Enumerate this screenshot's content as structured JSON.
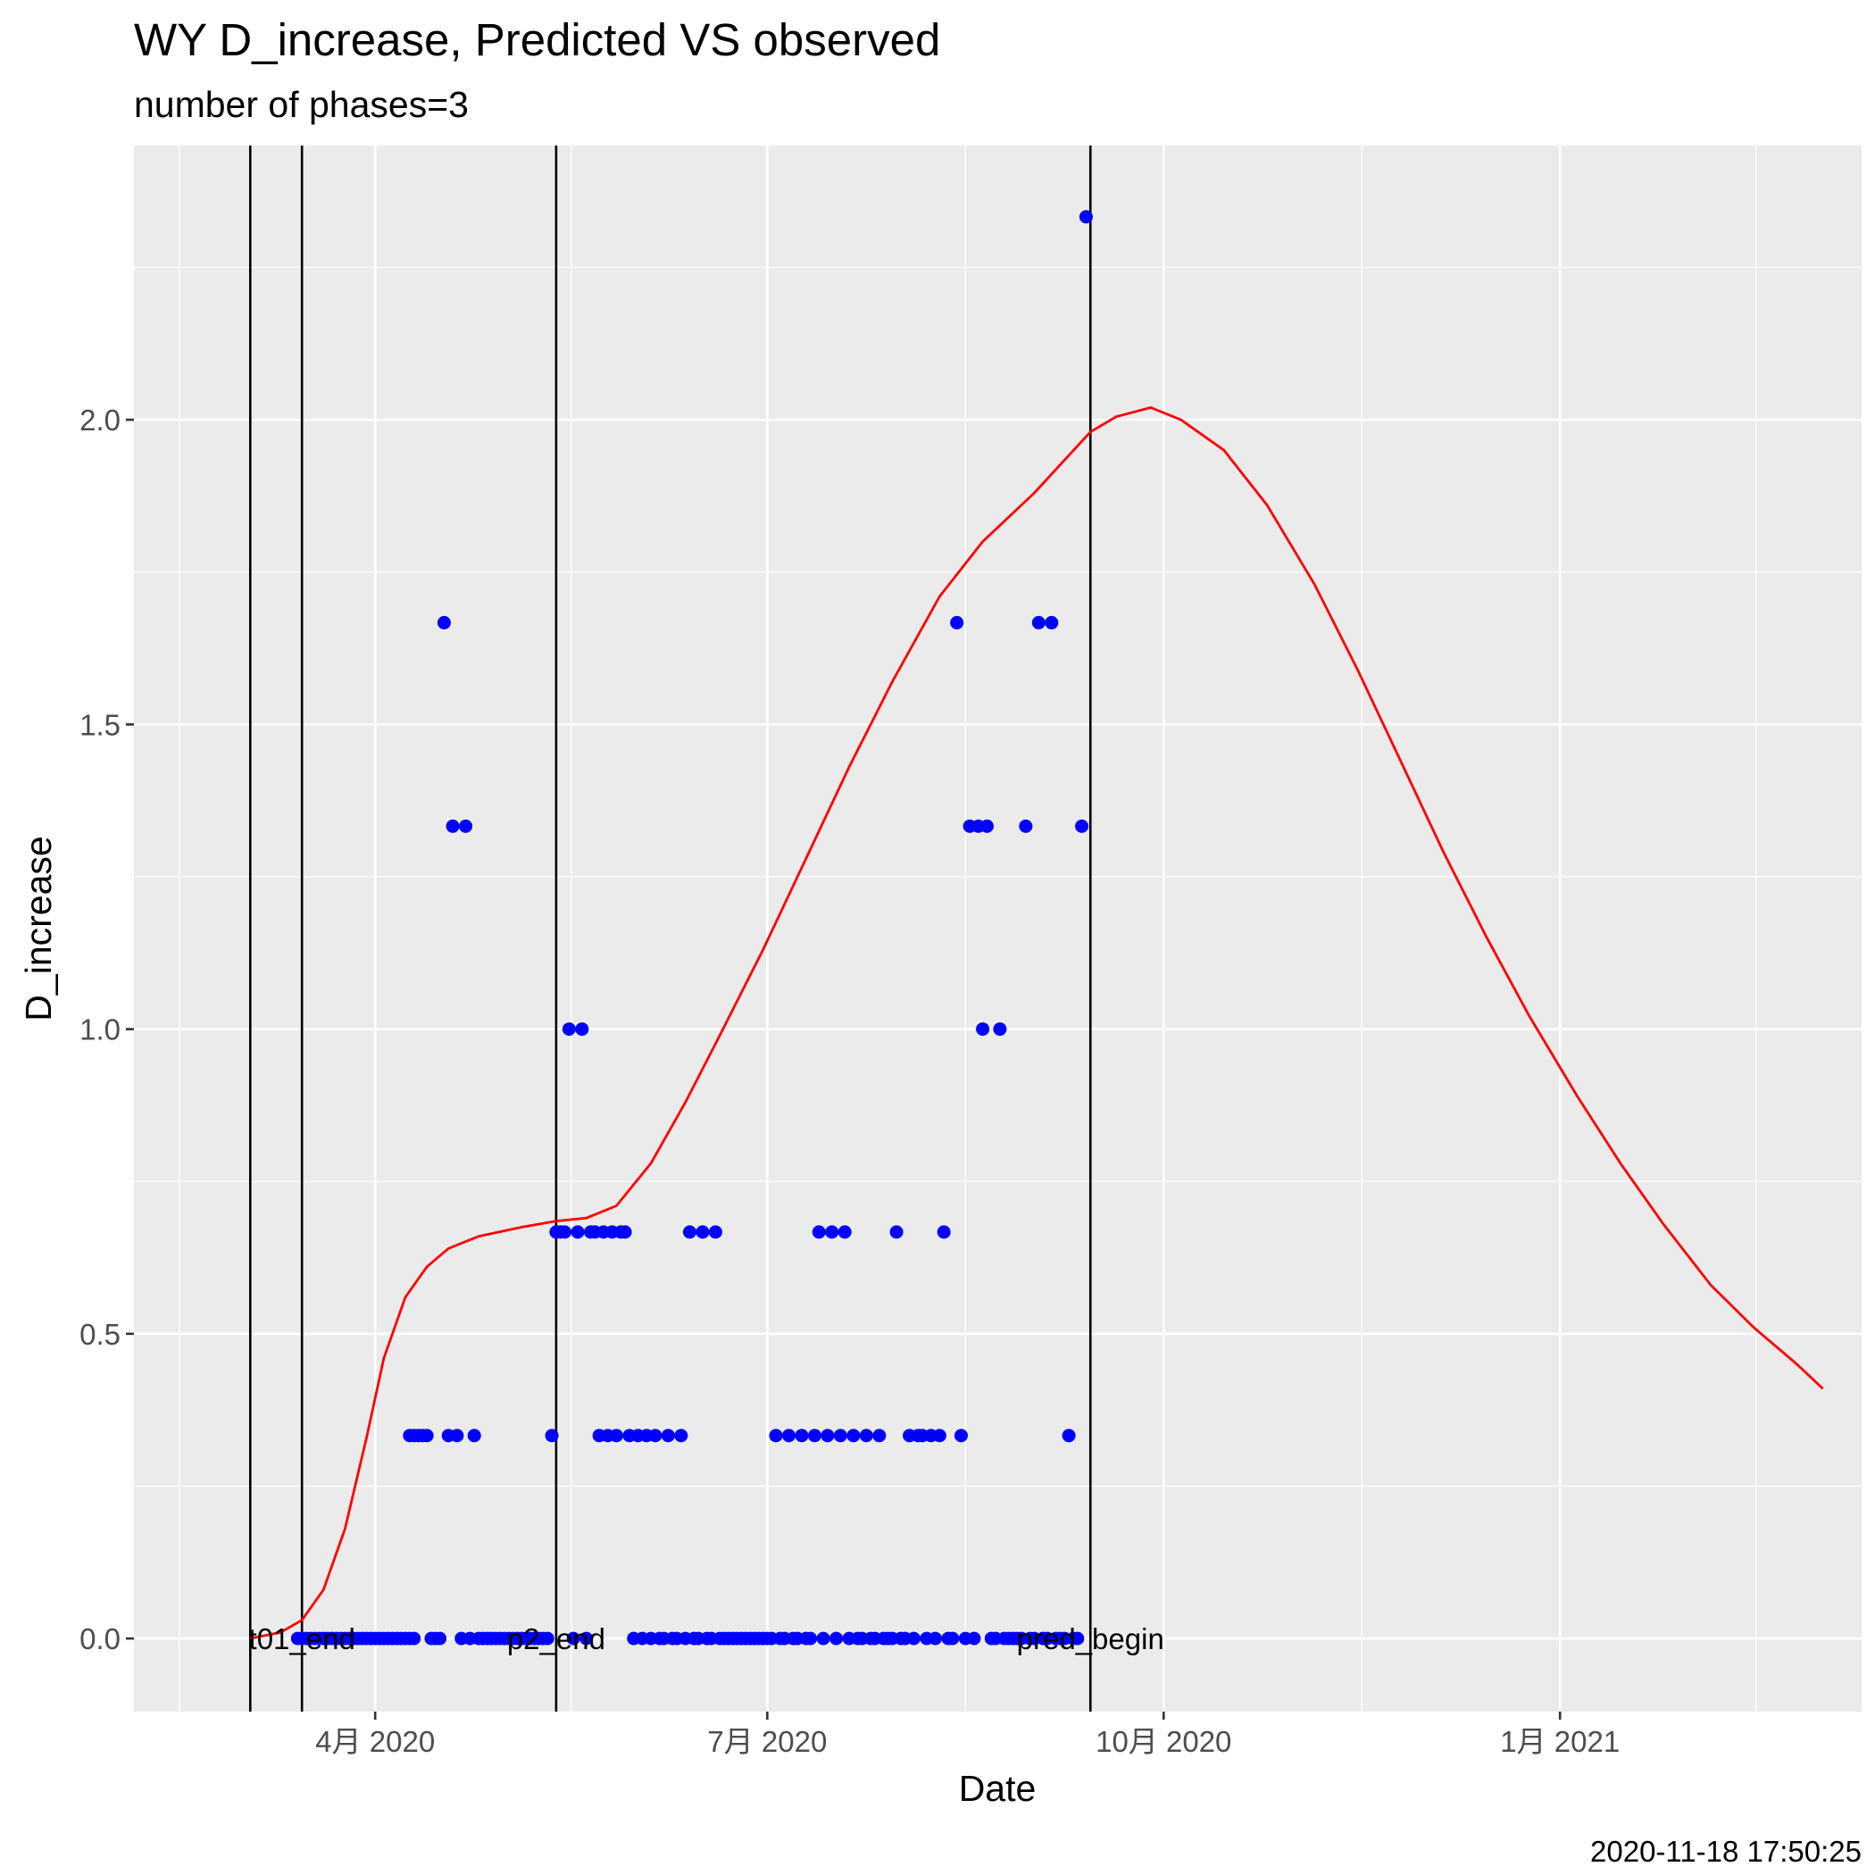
{
  "chart_data": {
    "type": "scatter",
    "title": "WY D_increase, Predicted VS observed",
    "subtitle": "number of phases=3",
    "xlabel": "Date",
    "ylabel": "D_increase",
    "caption": "2020-11-18 17:50:25",
    "xlim": [
      "2020-02-05",
      "2021-03-12"
    ],
    "ylim": [
      -0.12,
      2.45
    ],
    "grid": true,
    "x_ticks": [
      {
        "value": "2020-04-01",
        "label": "4月 2020"
      },
      {
        "value": "2020-07-01",
        "label": "7月 2020"
      },
      {
        "value": "2020-10-01",
        "label": "10月 2020"
      },
      {
        "value": "2021-01-01",
        "label": "1月 2021"
      }
    ],
    "y_ticks": [
      {
        "value": 0.0,
        "label": "0.0"
      },
      {
        "value": 0.5,
        "label": "0.5"
      },
      {
        "value": 1.0,
        "label": "1.0"
      },
      {
        "value": 1.5,
        "label": "1.5"
      },
      {
        "value": 2.0,
        "label": "2.0"
      }
    ],
    "vertical_lines": [
      {
        "date": "2020-03-03",
        "label": ""
      },
      {
        "date": "2020-03-15",
        "label": "t01_end"
      },
      {
        "date": "2020-05-13",
        "label": "p2_end"
      },
      {
        "date": "2020-09-14",
        "label": "pred_begin"
      }
    ],
    "series": [
      {
        "type": "scatter",
        "color": "#0000ff",
        "points": [
          [
            "2020-03-14",
            0
          ],
          [
            "2020-03-15",
            0
          ],
          [
            "2020-03-16",
            0
          ],
          [
            "2020-03-17",
            0
          ],
          [
            "2020-03-18",
            0
          ],
          [
            "2020-03-19",
            0
          ],
          [
            "2020-03-20",
            0
          ],
          [
            "2020-03-21",
            0
          ],
          [
            "2020-03-22",
            0
          ],
          [
            "2020-03-23",
            0
          ],
          [
            "2020-03-24",
            0
          ],
          [
            "2020-03-25",
            0
          ],
          [
            "2020-03-26",
            0
          ],
          [
            "2020-03-27",
            0
          ],
          [
            "2020-03-28",
            0
          ],
          [
            "2020-03-29",
            0
          ],
          [
            "2020-03-30",
            0
          ],
          [
            "2020-03-31",
            0
          ],
          [
            "2020-04-01",
            0
          ],
          [
            "2020-04-02",
            0
          ],
          [
            "2020-04-03",
            0
          ],
          [
            "2020-04-04",
            0
          ],
          [
            "2020-04-05",
            0
          ],
          [
            "2020-04-06",
            0
          ],
          [
            "2020-04-07",
            0
          ],
          [
            "2020-04-08",
            0
          ],
          [
            "2020-04-09",
            0
          ],
          [
            "2020-04-10",
            0
          ],
          [
            "2020-04-09",
            0.333
          ],
          [
            "2020-04-10",
            0.333
          ],
          [
            "2020-04-11",
            0.333
          ],
          [
            "2020-04-12",
            0.333
          ],
          [
            "2020-04-13",
            0.333
          ],
          [
            "2020-04-14",
            0
          ],
          [
            "2020-04-15",
            0
          ],
          [
            "2020-04-16",
            0
          ],
          [
            "2020-04-17",
            1.667
          ],
          [
            "2020-04-18",
            0.333
          ],
          [
            "2020-04-19",
            1.333
          ],
          [
            "2020-04-20",
            0.333
          ],
          [
            "2020-04-21",
            0
          ],
          [
            "2020-04-22",
            1.333
          ],
          [
            "2020-04-23",
            0
          ],
          [
            "2020-04-24",
            0.333
          ],
          [
            "2020-04-25",
            0
          ],
          [
            "2020-04-26",
            0
          ],
          [
            "2020-04-27",
            0
          ],
          [
            "2020-04-28",
            0
          ],
          [
            "2020-04-29",
            0
          ],
          [
            "2020-04-30",
            0
          ],
          [
            "2020-05-01",
            0
          ],
          [
            "2020-05-02",
            0
          ],
          [
            "2020-05-03",
            0
          ],
          [
            "2020-05-04",
            0
          ],
          [
            "2020-05-05",
            0
          ],
          [
            "2020-05-06",
            0
          ],
          [
            "2020-05-07",
            0
          ],
          [
            "2020-05-08",
            0
          ],
          [
            "2020-05-09",
            0
          ],
          [
            "2020-05-10",
            0
          ],
          [
            "2020-05-11",
            0
          ],
          [
            "2020-05-12",
            0.333
          ],
          [
            "2020-05-13",
            0.667
          ],
          [
            "2020-05-14",
            0.667
          ],
          [
            "2020-05-15",
            0.667
          ],
          [
            "2020-05-16",
            1
          ],
          [
            "2020-05-17",
            0
          ],
          [
            "2020-05-18",
            0.667
          ],
          [
            "2020-05-19",
            1
          ],
          [
            "2020-05-20",
            0
          ],
          [
            "2020-05-21",
            0.667
          ],
          [
            "2020-05-22",
            0.667
          ],
          [
            "2020-05-23",
            0.333
          ],
          [
            "2020-05-24",
            0.667
          ],
          [
            "2020-05-25",
            0.333
          ],
          [
            "2020-05-26",
            0.667
          ],
          [
            "2020-05-27",
            0.333
          ],
          [
            "2020-05-28",
            0.667
          ],
          [
            "2020-05-29",
            0.667
          ],
          [
            "2020-05-30",
            0.333
          ],
          [
            "2020-05-31",
            0
          ],
          [
            "2020-06-01",
            0.333
          ],
          [
            "2020-06-02",
            0
          ],
          [
            "2020-06-03",
            0.333
          ],
          [
            "2020-06-04",
            0
          ],
          [
            "2020-06-05",
            0.333
          ],
          [
            "2020-06-06",
            0
          ],
          [
            "2020-06-07",
            0
          ],
          [
            "2020-06-08",
            0.333
          ],
          [
            "2020-06-09",
            0
          ],
          [
            "2020-06-10",
            0
          ],
          [
            "2020-06-11",
            0.333
          ],
          [
            "2020-06-12",
            0
          ],
          [
            "2020-06-13",
            0.667
          ],
          [
            "2020-06-14",
            0
          ],
          [
            "2020-06-15",
            0
          ],
          [
            "2020-06-16",
            0.667
          ],
          [
            "2020-06-17",
            0
          ],
          [
            "2020-06-18",
            0
          ],
          [
            "2020-06-19",
            0.667
          ],
          [
            "2020-06-20",
            0
          ],
          [
            "2020-06-21",
            0
          ],
          [
            "2020-06-22",
            0
          ],
          [
            "2020-06-23",
            0
          ],
          [
            "2020-06-24",
            0
          ],
          [
            "2020-06-25",
            0
          ],
          [
            "2020-06-26",
            0
          ],
          [
            "2020-06-27",
            0
          ],
          [
            "2020-06-28",
            0
          ],
          [
            "2020-06-29",
            0
          ],
          [
            "2020-06-30",
            0
          ],
          [
            "2020-07-01",
            0
          ],
          [
            "2020-07-02",
            0
          ],
          [
            "2020-07-03",
            0.333
          ],
          [
            "2020-07-04",
            0
          ],
          [
            "2020-07-05",
            0
          ],
          [
            "2020-07-06",
            0.333
          ],
          [
            "2020-07-07",
            0
          ],
          [
            "2020-07-08",
            0
          ],
          [
            "2020-07-09",
            0.333
          ],
          [
            "2020-07-10",
            0
          ],
          [
            "2020-07-11",
            0
          ],
          [
            "2020-07-12",
            0.333
          ],
          [
            "2020-07-13",
            0.667
          ],
          [
            "2020-07-14",
            0
          ],
          [
            "2020-07-15",
            0.333
          ],
          [
            "2020-07-16",
            0.667
          ],
          [
            "2020-07-17",
            0
          ],
          [
            "2020-07-18",
            0.333
          ],
          [
            "2020-07-19",
            0.667
          ],
          [
            "2020-07-20",
            0
          ],
          [
            "2020-07-21",
            0.333
          ],
          [
            "2020-07-22",
            0
          ],
          [
            "2020-07-23",
            0
          ],
          [
            "2020-07-24",
            0.333
          ],
          [
            "2020-07-25",
            0
          ],
          [
            "2020-07-26",
            0
          ],
          [
            "2020-07-27",
            0.333
          ],
          [
            "2020-07-28",
            0
          ],
          [
            "2020-07-29",
            0
          ],
          [
            "2020-07-30",
            0
          ],
          [
            "2020-07-31",
            0.667
          ],
          [
            "2020-08-01",
            0
          ],
          [
            "2020-08-02",
            0
          ],
          [
            "2020-08-03",
            0.333
          ],
          [
            "2020-08-04",
            0
          ],
          [
            "2020-08-05",
            0.333
          ],
          [
            "2020-08-06",
            0.333
          ],
          [
            "2020-08-07",
            0
          ],
          [
            "2020-08-08",
            0.333
          ],
          [
            "2020-08-09",
            0
          ],
          [
            "2020-08-10",
            0.333
          ],
          [
            "2020-08-11",
            0.667
          ],
          [
            "2020-08-12",
            0
          ],
          [
            "2020-08-13",
            0
          ],
          [
            "2020-08-14",
            1.667
          ],
          [
            "2020-08-15",
            0.333
          ],
          [
            "2020-08-16",
            0
          ],
          [
            "2020-08-17",
            1.333
          ],
          [
            "2020-08-18",
            0
          ],
          [
            "2020-08-19",
            1.333
          ],
          [
            "2020-08-20",
            1
          ],
          [
            "2020-08-21",
            1.333
          ],
          [
            "2020-08-22",
            0
          ],
          [
            "2020-08-23",
            0
          ],
          [
            "2020-08-24",
            1
          ],
          [
            "2020-08-25",
            0
          ],
          [
            "2020-08-26",
            0
          ],
          [
            "2020-08-27",
            0
          ],
          [
            "2020-08-28",
            0
          ],
          [
            "2020-08-29",
            0
          ],
          [
            "2020-08-30",
            1.333
          ],
          [
            "2020-08-31",
            0
          ],
          [
            "2020-09-01",
            0
          ],
          [
            "2020-09-02",
            1.667
          ],
          [
            "2020-09-03",
            0
          ],
          [
            "2020-09-04",
            0
          ],
          [
            "2020-09-05",
            1.667
          ],
          [
            "2020-09-06",
            0
          ],
          [
            "2020-09-07",
            0
          ],
          [
            "2020-09-08",
            0
          ],
          [
            "2020-09-09",
            0.333
          ],
          [
            "2020-09-10",
            0
          ],
          [
            "2020-09-11",
            0
          ],
          [
            "2020-09-12",
            1.333
          ],
          [
            "2020-09-13",
            2.333
          ]
        ]
      },
      {
        "type": "line",
        "color": "#ff0000",
        "points": [
          [
            "2020-03-03",
            0.0
          ],
          [
            "2020-03-10",
            0.01
          ],
          [
            "2020-03-15",
            0.03
          ],
          [
            "2020-03-20",
            0.08
          ],
          [
            "2020-03-25",
            0.18
          ],
          [
            "2020-03-30",
            0.33
          ],
          [
            "2020-04-03",
            0.46
          ],
          [
            "2020-04-08",
            0.56
          ],
          [
            "2020-04-13",
            0.61
          ],
          [
            "2020-04-18",
            0.64
          ],
          [
            "2020-04-25",
            0.66
          ],
          [
            "2020-05-05",
            0.675
          ],
          [
            "2020-05-13",
            0.685
          ],
          [
            "2020-05-20",
            0.69
          ],
          [
            "2020-05-27",
            0.71
          ],
          [
            "2020-06-04",
            0.78
          ],
          [
            "2020-06-12",
            0.88
          ],
          [
            "2020-06-20",
            0.99
          ],
          [
            "2020-06-30",
            1.13
          ],
          [
            "2020-07-10",
            1.28
          ],
          [
            "2020-07-20",
            1.43
          ],
          [
            "2020-07-30",
            1.57
          ],
          [
            "2020-08-10",
            1.71
          ],
          [
            "2020-08-20",
            1.8
          ],
          [
            "2020-09-01",
            1.88
          ],
          [
            "2020-09-14",
            1.98
          ],
          [
            "2020-09-20",
            2.005
          ],
          [
            "2020-09-28",
            2.02
          ],
          [
            "2020-10-05",
            2.0
          ],
          [
            "2020-10-15",
            1.95
          ],
          [
            "2020-10-25",
            1.86
          ],
          [
            "2020-11-05",
            1.73
          ],
          [
            "2020-11-15",
            1.59
          ],
          [
            "2020-11-25",
            1.44
          ],
          [
            "2020-12-05",
            1.29
          ],
          [
            "2020-12-15",
            1.15
          ],
          [
            "2020-12-25",
            1.02
          ],
          [
            "2021-01-05",
            0.89
          ],
          [
            "2021-01-15",
            0.78
          ],
          [
            "2021-01-25",
            0.68
          ],
          [
            "2021-02-05",
            0.58
          ],
          [
            "2021-02-15",
            0.51
          ],
          [
            "2021-02-25",
            0.45
          ],
          [
            "2021-03-03",
            0.41
          ]
        ]
      }
    ]
  }
}
